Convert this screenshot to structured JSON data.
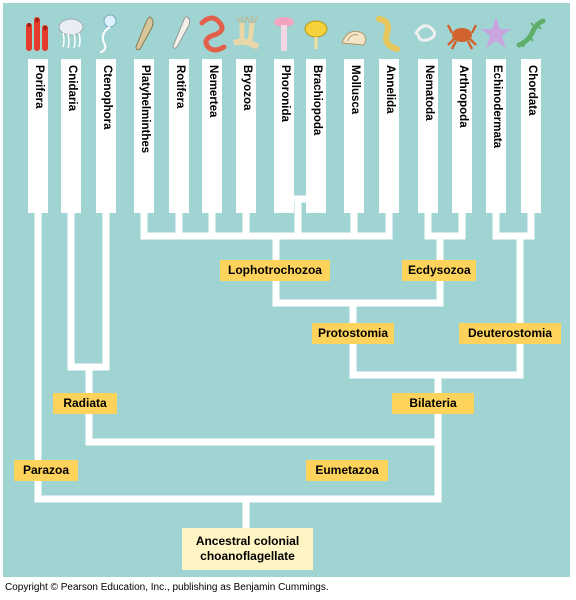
{
  "taxa": [
    {
      "name": "Porifera",
      "icon": "sponge-icon",
      "color": "#e23b2c"
    },
    {
      "name": "Cnidaria",
      "icon": "jellyfish-icon",
      "color": "#e8eef4"
    },
    {
      "name": "Ctenophora",
      "icon": "comb-jelly-icon",
      "color": "#dff0ff"
    },
    {
      "name": "Platyhelminthes",
      "icon": "flatworm-icon",
      "color": "#d8c79a"
    },
    {
      "name": "Rotifera",
      "icon": "rotifer-icon",
      "color": "#f1f1ea"
    },
    {
      "name": "Nemertea",
      "icon": "ribbon-worm-icon",
      "color": "#e35f4a"
    },
    {
      "name": "Bryozoa",
      "icon": "bryozoan-icon",
      "color": "#e9d7a7"
    },
    {
      "name": "Phoronida",
      "icon": "phoronid-icon",
      "color": "#f1a3c1"
    },
    {
      "name": "Brachiopoda",
      "icon": "brachiopod-icon",
      "color": "#f5d23c"
    },
    {
      "name": "Mollusca",
      "icon": "snail-icon",
      "color": "#f2e5c8"
    },
    {
      "name": "Annelida",
      "icon": "earthworm-icon",
      "color": "#e7c65b"
    },
    {
      "name": "Nematoda",
      "icon": "roundworm-icon",
      "color": "#f0f0f0"
    },
    {
      "name": "Arthropoda",
      "icon": "crab-icon",
      "color": "#d1632e"
    },
    {
      "name": "Echinodermata",
      "icon": "sea-star-icon",
      "color": "#c8a4e0"
    },
    {
      "name": "Chordata",
      "icon": "salamander-icon",
      "color": "#5fae6b"
    }
  ],
  "clades": {
    "lophotrochozoa": "Lophotrochozoa",
    "ecdysozoa": "Ecdysozoa",
    "protostomia": "Protostomia",
    "deuterostomia": "Deuterostomia",
    "radiata": "Radiata",
    "bilateria": "Bilateria",
    "parazoa": "Parazoa",
    "eumetazoa": "Eumetazoa"
  },
  "ancestor": {
    "line1": "Ancestral colonial",
    "line2": "choanoflagellate"
  },
  "colors": {
    "background": "#9fd4d2",
    "branch": "#ffffff",
    "clade_label": "#fdd35c",
    "ancestor_label": "#fff4c4"
  },
  "copyright": "Copyright © Pearson Education, Inc., publishing as Benjamin Cummings."
}
